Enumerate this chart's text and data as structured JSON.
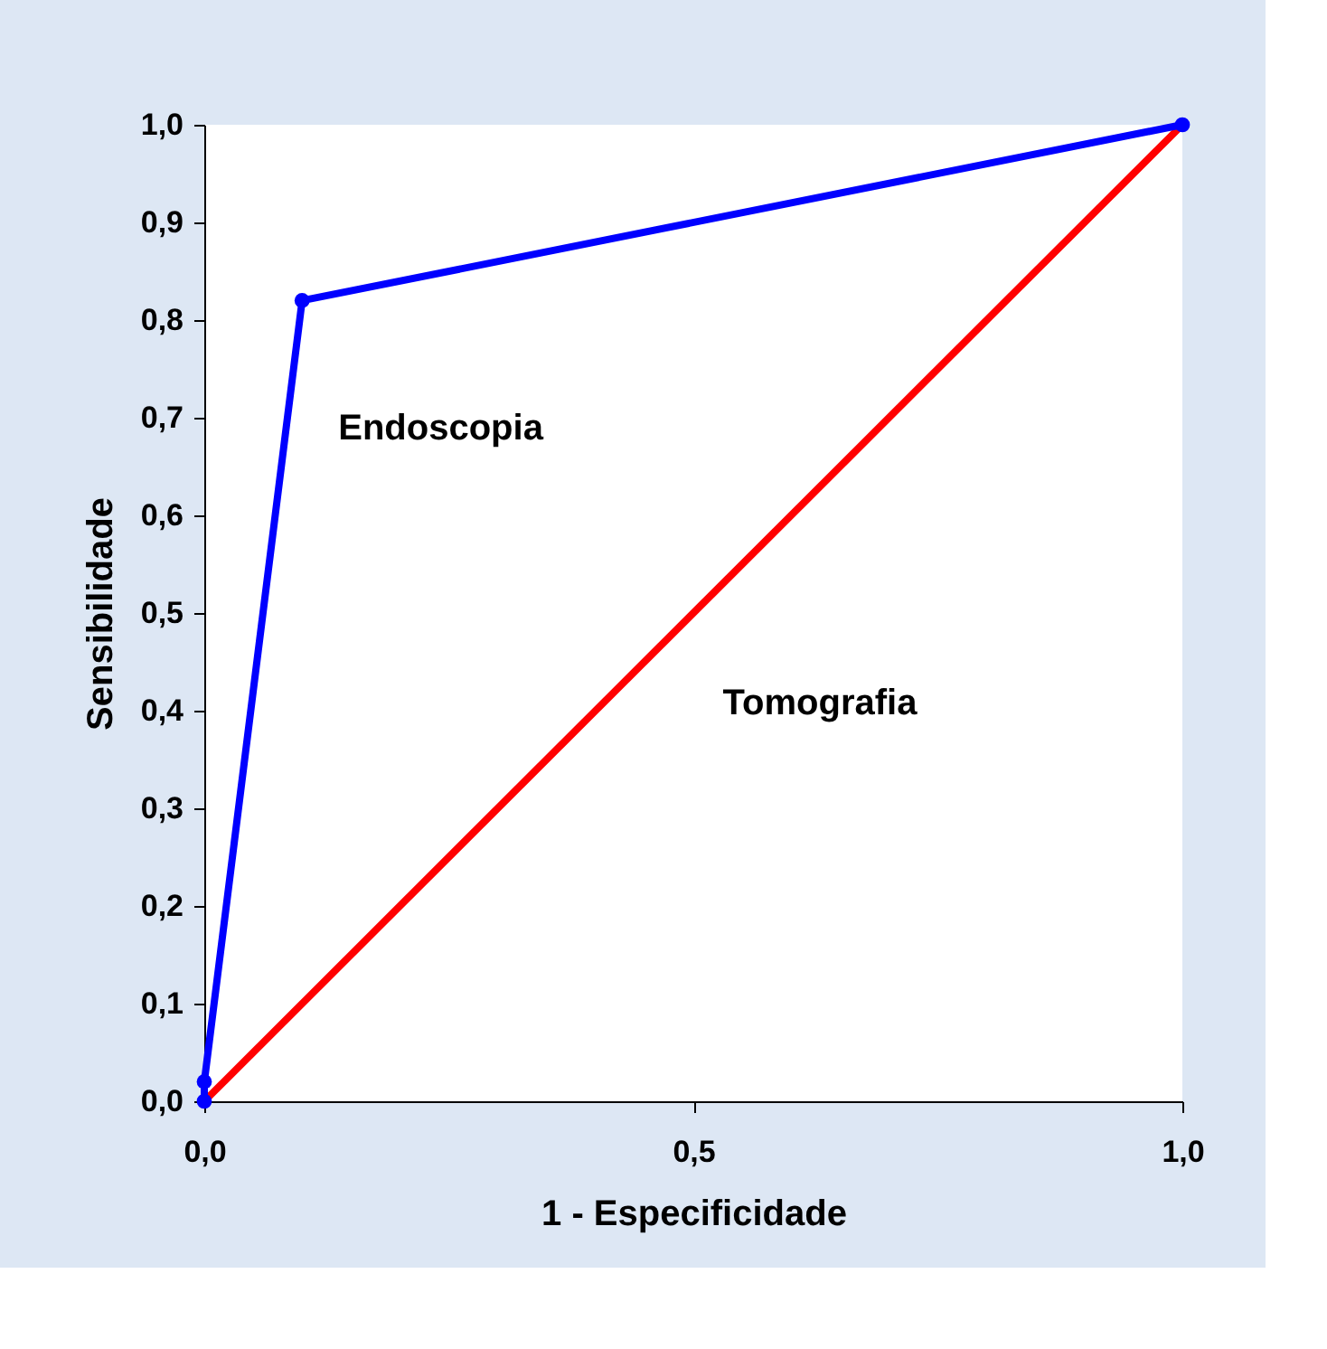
{
  "chart_data": {
    "type": "line",
    "xlabel": "1 - Especificidade",
    "ylabel": "Sensibilidade",
    "series": [
      {
        "name": "Endoscopia",
        "color": "#0000ff",
        "x": [
          0,
          0,
          0.1,
          1
        ],
        "values": [
          0,
          0.02,
          0.82,
          1
        ]
      },
      {
        "name": "Tomografia",
        "color": "#ff0000",
        "x": [
          0,
          1
        ],
        "values": [
          0,
          1
        ]
      }
    ],
    "xlim": [
      0,
      1
    ],
    "ylim": [
      0,
      1
    ],
    "xticks": [
      {
        "value": 0,
        "label": "0,0"
      },
      {
        "value": 0.5,
        "label": "0,5"
      },
      {
        "value": 1,
        "label": "1,0"
      }
    ],
    "yticks": [
      {
        "value": 0,
        "label": "0,0"
      },
      {
        "value": 0.1,
        "label": "0,1"
      },
      {
        "value": 0.2,
        "label": "0,2"
      },
      {
        "value": 0.3,
        "label": "0,3"
      },
      {
        "value": 0.4,
        "label": "0,4"
      },
      {
        "value": 0.5,
        "label": "0,5"
      },
      {
        "value": 0.6,
        "label": "0,6"
      },
      {
        "value": 0.7,
        "label": "0,7"
      },
      {
        "value": 0.8,
        "label": "0,8"
      },
      {
        "value": 0.9,
        "label": "0,9"
      },
      {
        "value": 1,
        "label": "1,0"
      }
    ],
    "grid": false,
    "marker": "circle",
    "line_style": "solid"
  }
}
